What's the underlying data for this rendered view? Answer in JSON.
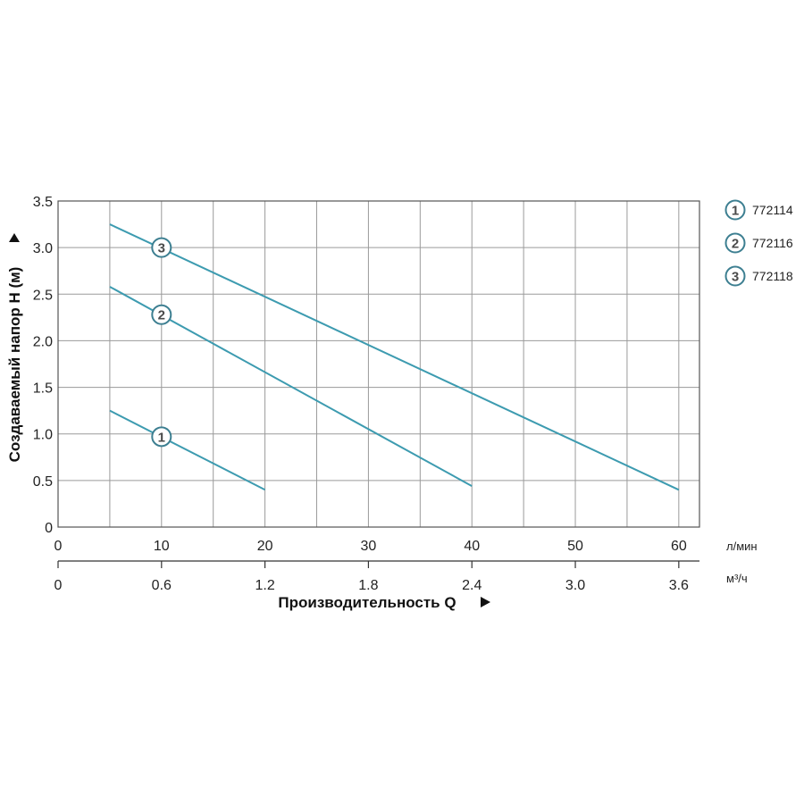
{
  "chart_data": {
    "type": "line",
    "ylabel": "Создаваемый напор H (м)",
    "xlabel": "Производительность Q",
    "x_unit_primary": "л/мин",
    "x_unit_secondary": "м³/ч",
    "xlim": [
      0,
      62
    ],
    "ylim": [
      0,
      3.5
    ],
    "x_ticks": [
      0,
      10,
      20,
      30,
      40,
      50,
      60
    ],
    "x_tick_labels": [
      "0",
      "10",
      "20",
      "30",
      "40",
      "50",
      "60"
    ],
    "x2_tick_labels": [
      "0",
      "0.6",
      "1.2",
      "1.8",
      "2.4",
      "3.0",
      "3.6"
    ],
    "y_ticks": [
      0,
      0.5,
      1.0,
      1.5,
      2.0,
      2.5,
      3.0,
      3.5
    ],
    "y_tick_labels": [
      "0",
      "0.5",
      "1.0",
      "1.5",
      "2.0",
      "2.5",
      "3.0",
      "3.5"
    ],
    "grid": true,
    "legend_position": "right-top",
    "series": [
      {
        "marker": "1",
        "name": "772114",
        "x": [
          5,
          20
        ],
        "y": [
          1.25,
          0.4
        ],
        "marker_x": 10,
        "marker_y": 0.97
      },
      {
        "marker": "2",
        "name": "772116",
        "x": [
          5,
          40
        ],
        "y": [
          2.58,
          0.44
        ],
        "marker_x": 10,
        "marker_y": 2.28
      },
      {
        "marker": "3",
        "name": "772118",
        "x": [
          5,
          60
        ],
        "y": [
          3.25,
          0.4
        ],
        "marker_x": 10,
        "marker_y": 3.0
      }
    ],
    "colors": {
      "line": "#3d9bb0",
      "grid": "#9a9a9a",
      "marker_stroke": "#3d7f91"
    }
  }
}
